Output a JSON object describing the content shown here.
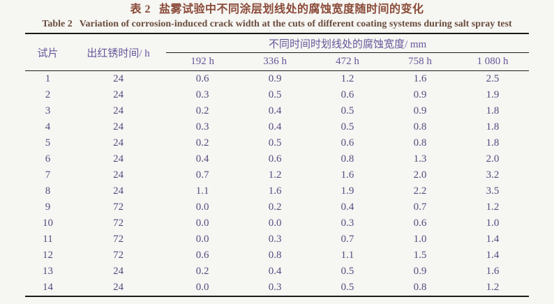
{
  "page": {
    "background": "#f6f6f3"
  },
  "colors": {
    "title_zh": "#8a4a38",
    "title_en": "#6b4c3e",
    "header_text": "#675699",
    "body_text": "#59497f",
    "rule": "#1a1a1a"
  },
  "title": {
    "zh_label": "表 2",
    "zh_text": "盐雾试验中不同涂层划线处的腐蚀宽度随时间的变化",
    "en_label": "Table 2",
    "en_text": "Variation of corrosion-induced crack width at the cuts of different coating systems during salt spray test"
  },
  "table": {
    "header": {
      "specimen": "试片",
      "rust_time": "出红锈时间/ h",
      "span": "不同时间时划线处的腐蚀宽度/ mm",
      "times": [
        "192 h",
        "336 h",
        "472 h",
        "758 h",
        "1 080 h"
      ]
    },
    "rows": [
      [
        "1",
        "24",
        "0.6",
        "0.9",
        "1.2",
        "1.6",
        "2.5"
      ],
      [
        "2",
        "24",
        "0.3",
        "0.5",
        "0.6",
        "0.9",
        "1.9"
      ],
      [
        "3",
        "24",
        "0.2",
        "0.4",
        "0.5",
        "0.9",
        "1.8"
      ],
      [
        "4",
        "24",
        "0.3",
        "0.4",
        "0.5",
        "0.8",
        "1.8"
      ],
      [
        "5",
        "24",
        "0.2",
        "0.5",
        "0.6",
        "0.8",
        "1.8"
      ],
      [
        "6",
        "24",
        "0.4",
        "0.6",
        "0.8",
        "1.3",
        "2.0"
      ],
      [
        "7",
        "24",
        "0.7",
        "1.2",
        "1.6",
        "2.0",
        "3.2"
      ],
      [
        "8",
        "24",
        "1.1",
        "1.6",
        "1.9",
        "2.2",
        "3.5"
      ],
      [
        "9",
        "72",
        "0.0",
        "0.2",
        "0.4",
        "0.7",
        "1.2"
      ],
      [
        "10",
        "72",
        "0.0",
        "0.0",
        "0.3",
        "0.6",
        "1.0"
      ],
      [
        "11",
        "72",
        "0.0",
        "0.3",
        "0.7",
        "1.0",
        "1.4"
      ],
      [
        "12",
        "72",
        "0.6",
        "0.8",
        "1.1",
        "1.5",
        "1.4"
      ],
      [
        "13",
        "24",
        "0.2",
        "0.4",
        "0.5",
        "0.9",
        "1.6"
      ],
      [
        "14",
        "24",
        "0.0",
        "0.3",
        "0.5",
        "0.8",
        "1.2"
      ]
    ]
  },
  "chart_data": {
    "type": "table",
    "title": "表 2 盐雾试验中不同涂层划线处的腐蚀宽度随时间的变化 / Table 2 Variation of corrosion-induced crack width at the cuts of different coating systems during salt spray test",
    "columns": [
      "试片",
      "出红锈时间/h",
      "192 h",
      "336 h",
      "472 h",
      "758 h",
      "1 080 h"
    ],
    "rows": [
      [
        "1",
        "24",
        "0.6",
        "0.9",
        "1.2",
        "1.6",
        "2.5"
      ],
      [
        "2",
        "24",
        "0.3",
        "0.5",
        "0.6",
        "0.9",
        "1.9"
      ],
      [
        "3",
        "24",
        "0.2",
        "0.4",
        "0.5",
        "0.9",
        "1.8"
      ],
      [
        "4",
        "24",
        "0.3",
        "0.4",
        "0.5",
        "0.8",
        "1.8"
      ],
      [
        "5",
        "24",
        "0.2",
        "0.5",
        "0.6",
        "0.8",
        "1.8"
      ],
      [
        "6",
        "24",
        "0.4",
        "0.6",
        "0.8",
        "1.3",
        "2.0"
      ],
      [
        "7",
        "24",
        "0.7",
        "1.2",
        "1.6",
        "2.0",
        "3.2"
      ],
      [
        "8",
        "24",
        "1.1",
        "1.6",
        "1.9",
        "2.2",
        "3.5"
      ],
      [
        "9",
        "72",
        "0.0",
        "0.2",
        "0.4",
        "0.7",
        "1.2"
      ],
      [
        "10",
        "72",
        "0.0",
        "0.0",
        "0.3",
        "0.6",
        "1.0"
      ],
      [
        "11",
        "72",
        "0.0",
        "0.3",
        "0.7",
        "1.0",
        "1.4"
      ],
      [
        "12",
        "72",
        "0.6",
        "0.8",
        "1.1",
        "1.5",
        "1.4"
      ],
      [
        "13",
        "24",
        "0.2",
        "0.4",
        "0.5",
        "0.9",
        "1.6"
      ],
      [
        "14",
        "24",
        "0.0",
        "0.3",
        "0.5",
        "0.8",
        "1.2"
      ]
    ]
  }
}
